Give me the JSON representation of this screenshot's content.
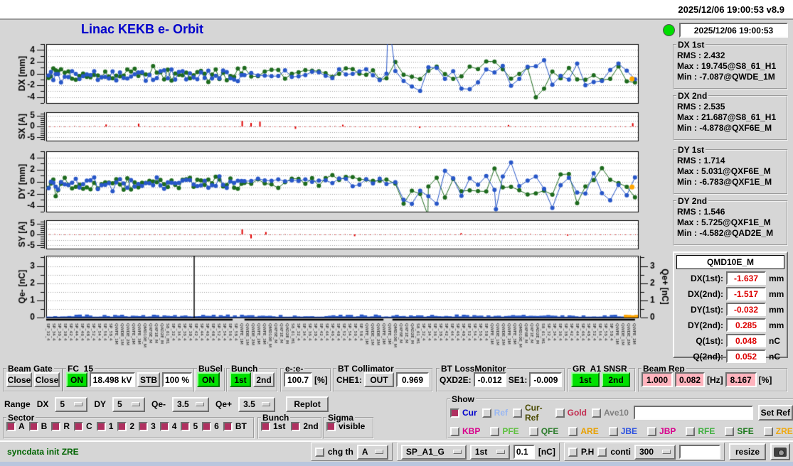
{
  "colors": {
    "green": "#00e000",
    "pink": "#ffb3bd",
    "maroon": "#b03060",
    "red_value": "#dd0000",
    "title_blue": "#0000cc",
    "msg_green": "#006400",
    "led": "#00dd00",
    "strip_blue": "#b9c6de"
  },
  "titlebar": {
    "text": "2025/12/06 19:00:53   v8.9"
  },
  "header": {
    "title": "Linac KEKB e- Orbit",
    "timestamp": "2025/12/06 19:00:53"
  },
  "stats": {
    "boxes": [
      {
        "title": "DX 1st",
        "rms_label": "RMS :",
        "rms": "2.432",
        "max_label": "Max :",
        "max": "19.745@S8_61_H1",
        "min_label": "Min :",
        "min": "-7.087@QWDE_1M"
      },
      {
        "title": "DX 2nd",
        "rms_label": "RMS :",
        "rms": "2.535",
        "max_label": "Max :",
        "max": "21.687@S8_61_H1",
        "min_label": "Min :",
        "min": "-4.878@QXF6E_M"
      },
      {
        "title": "DY 1st",
        "rms_label": "RMS :",
        "rms": "1.714",
        "max_label": "Max :",
        "max": "5.031@QXF6E_M",
        "min_label": "Min :",
        "min": "-6.783@QXF1E_M"
      },
      {
        "title": "DY 2nd",
        "rms_label": "RMS :",
        "rms": "1.546",
        "max_label": "Max :",
        "max": "5.725@QXF1E_M",
        "min_label": "Min :",
        "min": "-4.582@QAD2E_M"
      }
    ]
  },
  "qmd": {
    "title": "QMD10E_M",
    "rows": [
      {
        "label": "DX(1st):",
        "value": "-1.637",
        "unit": "mm"
      },
      {
        "label": "DX(2nd):",
        "value": "-1.517",
        "unit": "mm"
      },
      {
        "label": "DY(1st):",
        "value": "-0.032",
        "unit": "mm"
      },
      {
        "label": "DY(2nd):",
        "value": "0.285",
        "unit": "mm"
      },
      {
        "label": "Q(1st):",
        "value": "0.048",
        "unit": "nC"
      },
      {
        "label": "Q(2nd):",
        "value": "0.052",
        "unit": "nC"
      }
    ]
  },
  "groups": {
    "beam_gate": {
      "title": "Beam Gate",
      "btn1": "Close",
      "btn2": "Close"
    },
    "fc15": {
      "title": "FC_15",
      "on": "ON",
      "kv": "18.498 kV",
      "stb": "STB",
      "pct": "100 %"
    },
    "busel": {
      "title": "BuSel",
      "on": "ON"
    },
    "bunch": {
      "title": "Bunch",
      "b1": "1st",
      "b2": "2nd"
    },
    "ee": {
      "title": "e-:e-",
      "value": "100.7",
      "unit": "[%]"
    },
    "btcoll": {
      "title": "BT Collimator",
      "label": "CHE1:",
      "btn": "OUT",
      "value": "0.969"
    },
    "btloss": {
      "title": "BT LossMonitor",
      "l1": "QXD2E:",
      "v1": "-0.012",
      "l2": "SE1:",
      "v2": "-0.009"
    },
    "grsnsr": {
      "title": "GR_A1 SNSR",
      "b1": "1st",
      "b2": "2nd"
    },
    "beamrep": {
      "title": "Beam Rep",
      "v1": "1.000",
      "v2": "0.082",
      "u1": "[Hz]",
      "v3": "8.167",
      "u2": "[%]"
    }
  },
  "range": {
    "label": "Range",
    "dx_label": "DX",
    "dx": "5",
    "dy_label": "DY",
    "dy": "5",
    "qem_label": "Qe-",
    "qem": "3.5",
    "qep_label": "Qe+",
    "qep": "3.5",
    "replot": "Replot"
  },
  "show": {
    "title": "Show",
    "entry": "",
    "set_ref": "Set Ref",
    "row1": [
      {
        "label": "Cur",
        "color": "#0000cc",
        "checked": true
      },
      {
        "label": "Ref",
        "color": "#99b7f2",
        "checked": false
      },
      {
        "label": "Cur-Ref",
        "color": "#4a4a00",
        "checked": false
      },
      {
        "label": "Gold",
        "color": "#c22c50",
        "checked": false
      },
      {
        "label": "Ave10",
        "color": "#808080",
        "checked": false
      }
    ],
    "row2": [
      {
        "label": "KBP",
        "color": "#d8008c",
        "checked": false
      },
      {
        "label": "PFE",
        "color": "#5fc040",
        "checked": false
      },
      {
        "label": "QFE",
        "color": "#2e7d2e",
        "checked": false
      },
      {
        "label": "ARE",
        "color": "#e8a000",
        "checked": false
      },
      {
        "label": "JBE",
        "color": "#2b50e0",
        "checked": false
      },
      {
        "label": "JBP",
        "color": "#d8008c",
        "checked": false
      },
      {
        "label": "RFE",
        "color": "#3faf3f",
        "checked": false
      },
      {
        "label": "SFE",
        "color": "#1e7a1e",
        "checked": false
      },
      {
        "label": "ZRE",
        "color": "#efa810",
        "checked": false
      }
    ]
  },
  "sector": {
    "title": "Sector",
    "items": [
      {
        "label": "A",
        "checked": true
      },
      {
        "label": "B",
        "checked": true
      },
      {
        "label": "R",
        "checked": true
      },
      {
        "label": "C",
        "checked": true
      },
      {
        "label": "1",
        "checked": true
      },
      {
        "label": "2",
        "checked": true
      },
      {
        "label": "3",
        "checked": true
      },
      {
        "label": "4",
        "checked": true
      },
      {
        "label": "5",
        "checked": true
      },
      {
        "label": "6",
        "checked": true
      },
      {
        "label": "BT",
        "checked": true
      }
    ]
  },
  "bunch2": {
    "title": "Bunch",
    "items": [
      {
        "label": "1st",
        "checked": true
      },
      {
        "label": "2nd",
        "checked": true
      }
    ]
  },
  "sigma": {
    "title": "Sigma",
    "label": "visible",
    "checked": true
  },
  "statusbar": {
    "message": "syncdata init ZRE",
    "chg_th": "chg th",
    "chg_checked": false,
    "th_sel": "A",
    "sp_sel": "SP_A1_G",
    "bunch_sel": "1st",
    "thr_value": "0.1",
    "thr_unit": "[nC]",
    "ph": "P.H",
    "ph_checked": false,
    "conti": "conti",
    "conti_checked": false,
    "count_sel": "300",
    "entry": "",
    "resize": "resize"
  },
  "chart_data": [
    {
      "id": "dx",
      "type": "orbit",
      "ylabel": "DX [mm]",
      "ylim": [
        -5,
        5
      ],
      "ytick_major": [
        4,
        2,
        0,
        -2,
        -4
      ],
      "grid_step": 1,
      "minor_step": 1,
      "series": [
        {
          "name": "2nd bunch",
          "color": "#1e6b1e",
          "seed": 12,
          "segments": [
            {
              "x0": 0.004,
              "x1": 0.02,
              "n": 5,
              "amp": 1.5,
              "bias": 0.2
            },
            {
              "x0": 0.025,
              "x1": 0.33,
              "n": 50,
              "amp": 1.15,
              "bias": 0.1
            },
            {
              "x0": 0.335,
              "x1": 0.575,
              "n": 22,
              "amp": 0.85,
              "bias": 0.15
            },
            {
              "x0": 0.59,
              "x1": 0.995,
              "n": 30,
              "amp": 2.7,
              "bias": -0.2
            }
          ],
          "spikes": []
        },
        {
          "name": "1st bunch",
          "color": "#2857c8",
          "seed": 11,
          "segments": [
            {
              "x0": 0.004,
              "x1": 0.02,
              "n": 5,
              "amp": 1.6,
              "bias": -0.6
            },
            {
              "x0": 0.025,
              "x1": 0.33,
              "n": 50,
              "amp": 1.15,
              "bias": -0.35
            },
            {
              "x0": 0.335,
              "x1": 0.575,
              "n": 22,
              "amp": 0.8,
              "bias": -0.1
            },
            {
              "x0": 0.59,
              "x1": 0.995,
              "n": 30,
              "amp": 2.7,
              "bias": -0.3
            }
          ],
          "spikes": [
            {
              "frac": 0.578,
              "value": 9.5
            }
          ]
        }
      ],
      "extra_point": {
        "frac": 0.99,
        "value": -0.9,
        "color": "#ffa500"
      }
    },
    {
      "id": "sx",
      "type": "bars",
      "ylabel": "SX [A]",
      "ylim": [
        -6.5,
        6.5
      ],
      "ytick_major": [
        5,
        0,
        -5
      ],
      "grid_step": 2.5,
      "minor_step": 1,
      "color": "#e00000",
      "seed": 31,
      "n": 118,
      "amp": 0.28,
      "spikes": [
        {
          "frac": 0.1,
          "value": 0.9
        },
        {
          "frac": 0.155,
          "value": 1.3
        },
        {
          "frac": 0.33,
          "value": 2.5
        },
        {
          "frac": 0.345,
          "value": 1.6
        },
        {
          "frac": 0.36,
          "value": 2.2
        },
        {
          "frac": 0.42,
          "value": -1.1
        },
        {
          "frac": 0.5,
          "value": 0.8
        },
        {
          "frac": 0.63,
          "value": -0.7
        },
        {
          "frac": 0.78,
          "value": 0.7
        },
        {
          "frac": 0.99,
          "value": 1.5
        }
      ]
    },
    {
      "id": "dy",
      "type": "orbit",
      "ylabel": "DY [mm]",
      "ylim": [
        -5,
        5
      ],
      "ytick_major": [
        4,
        2,
        0,
        -2,
        -4
      ],
      "grid_step": 1,
      "minor_step": 1,
      "series": [
        {
          "name": "2nd bunch",
          "color": "#1e6b1e",
          "seed": 22,
          "segments": [
            {
              "x0": 0.004,
              "x1": 0.02,
              "n": 5,
              "amp": 1.5,
              "bias": -0.3
            },
            {
              "x0": 0.025,
              "x1": 0.33,
              "n": 50,
              "amp": 1.0,
              "bias": -0.2
            },
            {
              "x0": 0.335,
              "x1": 0.575,
              "n": 22,
              "amp": 0.9,
              "bias": 0.1
            },
            {
              "x0": 0.59,
              "x1": 0.995,
              "n": 30,
              "amp": 2.6,
              "bias": -0.8
            }
          ],
          "spikes": [
            {
              "frac": 0.645,
              "value": -5.6
            }
          ]
        },
        {
          "name": "1st bunch",
          "color": "#2857c8",
          "seed": 21,
          "segments": [
            {
              "x0": 0.004,
              "x1": 0.02,
              "n": 5,
              "amp": 1.6,
              "bias": -0.5
            },
            {
              "x0": 0.025,
              "x1": 0.33,
              "n": 50,
              "amp": 1.0,
              "bias": -0.3
            },
            {
              "x0": 0.335,
              "x1": 0.575,
              "n": 22,
              "amp": 0.85,
              "bias": -0.1
            },
            {
              "x0": 0.59,
              "x1": 0.995,
              "n": 30,
              "amp": 2.6,
              "bias": -0.4
            }
          ],
          "spikes": [
            {
              "frac": 0.76,
              "value": -4.6
            }
          ]
        }
      ],
      "extra_point": {
        "frac": 0.99,
        "value": -0.9,
        "color": "#ffa500"
      }
    },
    {
      "id": "sy",
      "type": "bars",
      "ylabel": "SY [A]",
      "ylim": [
        -6.5,
        6.5
      ],
      "ytick_major": [
        5,
        0,
        -5
      ],
      "grid_step": 2.5,
      "minor_step": 1,
      "color": "#e00000",
      "seed": 41,
      "n": 118,
      "amp": 0.26,
      "spikes": [
        {
          "frac": 0.33,
          "value": 2.3
        },
        {
          "frac": 0.345,
          "value": -1.8
        },
        {
          "frac": 0.37,
          "value": 1.1
        },
        {
          "frac": 0.52,
          "value": -0.8
        },
        {
          "frac": 0.7,
          "value": 0.6
        },
        {
          "frac": 0.88,
          "value": -0.6
        }
      ]
    },
    {
      "id": "qe",
      "type": "charge",
      "ylabel_left": "Qe- [nC]",
      "ylabel_right": "Qe+ [nC]",
      "ylim": [
        0,
        3.6
      ],
      "ytick_major": [
        3,
        2,
        1,
        0
      ],
      "grid_step": 0.5,
      "minor_step": 0.5,
      "seed": 51,
      "n": 168,
      "base": 0.05,
      "var": 0.13,
      "color": "#2857c8",
      "spike": {
        "frac": 0.25,
        "color": "#000000"
      },
      "tail": {
        "n": 4,
        "color": "#ffa500",
        "height": 0.16
      }
    },
    {
      "id": "xlabels",
      "type": "labels",
      "slots": 104,
      "color": "#111111",
      "bars": [
        [
          0,
          0.315
        ],
        [
          0.335,
          0.57
        ],
        [
          0.585,
          0.995
        ]
      ],
      "labels": [
        "SP_32_4",
        "SP_34_4",
        "SP_36_4",
        "SP_38_4",
        "SP_42_4",
        "SP_44_4",
        "SP_46_4",
        "SP_48_4",
        "SP_52_4",
        "SP_54_4",
        "SP_56_4",
        "SP_58_4",
        "QWFE_1M",
        "QWDE_1M",
        "QWDE_2M",
        "QWFE_2M",
        "QWFE_3M",
        "QMD10E_M",
        "QXF6E_M",
        "QXF1E_M",
        "QAD2E_M",
        "S8_61_H1"
      ]
    }
  ]
}
